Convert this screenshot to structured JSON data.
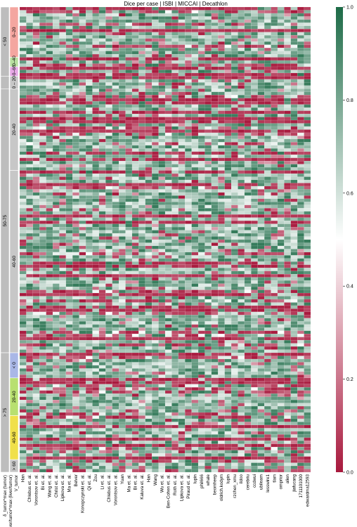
{
  "chart_data": {
    "type": "heatmap",
    "title": "Dice per case | ISBI | MICCAI | Decathlon",
    "colorbar": {
      "vmin": 0.0,
      "vmax": 1.0,
      "ticks": [
        "0.0",
        "0.2",
        "0.4",
        "0.6",
        "0.8",
        "1.0"
      ],
      "colors": [
        "#a8193d",
        "#ffffff",
        "#1d6b47"
      ]
    },
    "columns": [
      "Han",
      "Chlebus et. al.",
      "Vorontsov et. al.",
      "Bi et. al.",
      "Wang et. al.",
      "Christ et. al.",
      "Lipkova et. al.",
      "Ma et. al.",
      "Belver",
      "Konopczynski et. al.",
      "Qi et. al.",
      "Zou",
      "Li et. al.",
      "Chlebus et. al.",
      "Vorontsov et. al.",
      "Yuan",
      "Ma et. al.",
      "Bi et. al.",
      "Kaluva et. al.",
      "Han",
      "Wang",
      "Wu et. al.",
      "Ben-Cohen et. al.",
      "Roth et. al.",
      "Lipkova et. al.",
      "Piraud et. al.",
      "lupin",
      "phil666",
      "whale",
      "beomheep",
      "oldrich.kodym",
      "lupin",
      "rzchen_xmu",
      "ildoo",
      "cerebriu",
      "ccdwui",
      "ubilearn",
      "lesswire1",
      "tlam",
      "ornprior",
      "alien",
      "jiafucang",
      "1711101000",
      "edwardma12593"
    ],
    "group_labels": {
      "tumor_label": "δ_tumor^max (tumor)",
      "liver_label": "δ_liver/tumor^max (liver/tumor)",
      "volume_label": "V_tumor"
    },
    "row_groups": [
      {
        "outer": "< 50",
        "inner": [
          {
            "label": "0–20",
            "rows": 16
          },
          {
            "label": "20–40",
            "rows": 3
          },
          {
            "label": "40–60",
            "rows": 3
          }
        ]
      },
      {
        "outer": "",
        "inner": [
          {
            "label": "0 – 20",
            "rows": 4
          }
        ]
      },
      {
        "outer": "50-75",
        "inner": [
          {
            "label": "20-40",
            "rows": 26
          },
          {
            "label": "40-60",
            "rows": 58
          }
        ]
      },
      {
        "outer": "> 75",
        "inner": [
          {
            "label": "< 0",
            "rows": 8
          },
          {
            "label": "20-40",
            "rows": 12
          },
          {
            "label": "40-60",
            "rows": 14
          },
          {
            "label": "> 60",
            "rows": 4
          }
        ]
      }
    ],
    "seed": 20171
  }
}
